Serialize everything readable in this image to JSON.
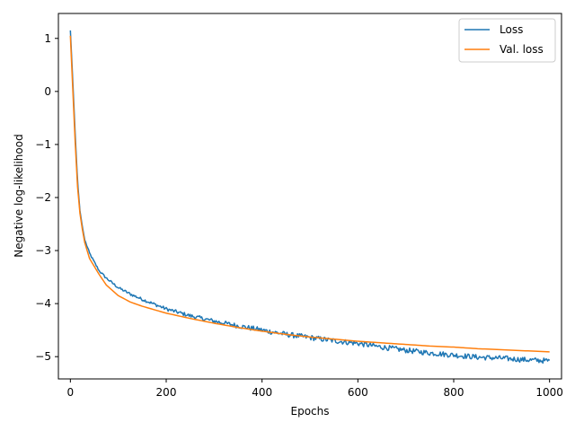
{
  "chart_data": {
    "type": "line",
    "title": "",
    "xlabel": "Epochs",
    "ylabel": "Negative log-likelihood",
    "xlim": [
      -25,
      1025
    ],
    "ylim": [
      -5.42,
      1.47
    ],
    "xticks": [
      0,
      200,
      400,
      600,
      800,
      1000
    ],
    "yticks": [
      1,
      0,
      -1,
      -2,
      -3,
      -4,
      -5
    ],
    "ytick_labels": [
      "1",
      "0",
      "−1",
      "−2",
      "−3",
      "−4",
      "−5"
    ],
    "grid": false,
    "legend": "top-right",
    "series": [
      {
        "name": "Loss",
        "color": "#1f77b4",
        "noisy": true,
        "x": [
          0,
          5,
          10,
          15,
          20,
          25,
          30,
          40,
          50,
          60,
          75,
          100,
          125,
          150,
          200,
          250,
          300,
          350,
          400,
          450,
          500,
          550,
          600,
          650,
          700,
          750,
          800,
          850,
          900,
          950,
          1000
        ],
        "y": [
          1.15,
          0.2,
          -0.8,
          -1.7,
          -2.25,
          -2.55,
          -2.8,
          -3.05,
          -3.22,
          -3.38,
          -3.52,
          -3.7,
          -3.82,
          -3.92,
          -4.1,
          -4.23,
          -4.33,
          -4.42,
          -4.5,
          -4.58,
          -4.64,
          -4.7,
          -4.75,
          -4.82,
          -4.88,
          -4.93,
          -4.97,
          -5.01,
          -5.03,
          -5.06,
          -5.08
        ]
      },
      {
        "name": "Val. loss",
        "color": "#ff7f0e",
        "noisy": false,
        "x": [
          0,
          5,
          10,
          15,
          20,
          25,
          30,
          40,
          50,
          60,
          75,
          100,
          125,
          150,
          200,
          250,
          300,
          350,
          400,
          450,
          500,
          550,
          600,
          650,
          700,
          750,
          800,
          850,
          900,
          950,
          1000
        ],
        "y": [
          1.05,
          0.05,
          -0.95,
          -1.8,
          -2.3,
          -2.6,
          -2.85,
          -3.15,
          -3.3,
          -3.45,
          -3.65,
          -3.85,
          -3.97,
          -4.05,
          -4.18,
          -4.28,
          -4.37,
          -4.45,
          -4.52,
          -4.58,
          -4.63,
          -4.67,
          -4.71,
          -4.74,
          -4.77,
          -4.8,
          -4.82,
          -4.85,
          -4.87,
          -4.89,
          -4.91
        ]
      }
    ]
  }
}
